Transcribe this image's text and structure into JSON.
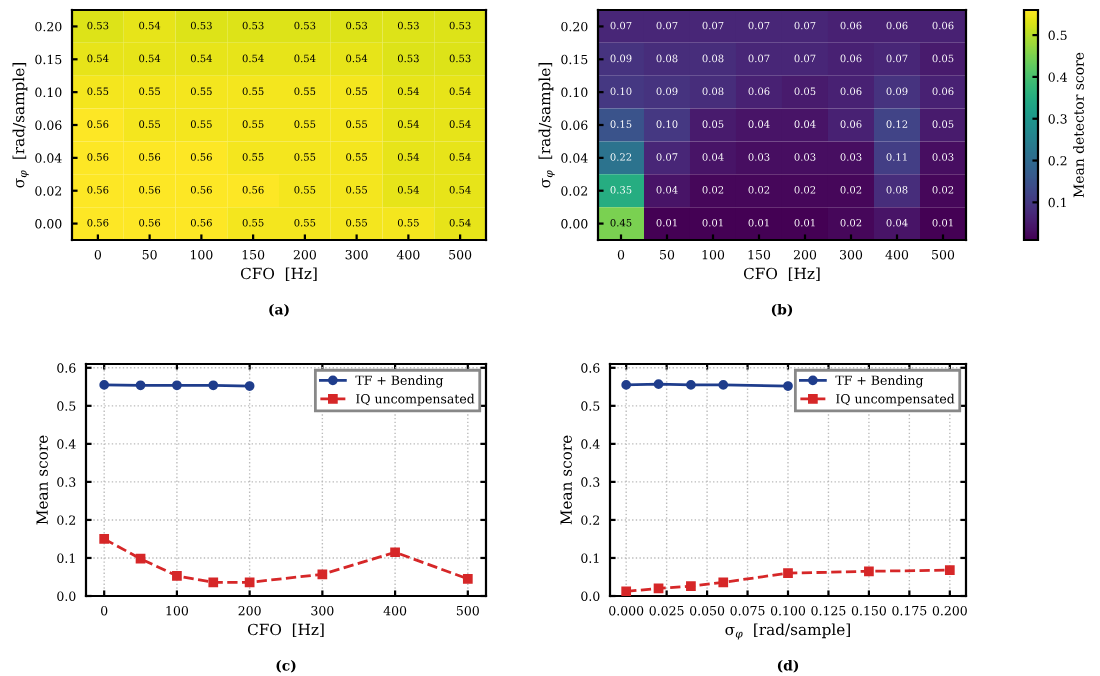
{
  "chart_data": [
    {
      "type": "heatmap",
      "categories": [
        "0",
        "50",
        "100",
        "150",
        "200",
        "300",
        "400",
        "500"
      ],
      "y_categories": [
        "0.20",
        "0.15",
        "0.10",
        "0.06",
        "0.04",
        "0.02",
        "0.00"
      ],
      "xlabel": "CFO  [Hz]",
      "ylabel": "σ$_{φ}$  [rad/sample]",
      "data_labels": true,
      "annotations": [
        "(a)"
      ],
      "cells": [
        [
          0.53,
          0.54,
          0.53,
          0.53,
          0.53,
          0.53,
          0.53,
          0.53
        ],
        [
          0.54,
          0.54,
          0.54,
          0.54,
          0.54,
          0.54,
          0.53,
          0.53
        ],
        [
          0.55,
          0.55,
          0.55,
          0.55,
          0.55,
          0.55,
          0.54,
          0.54
        ],
        [
          0.56,
          0.55,
          0.55,
          0.55,
          0.55,
          0.55,
          0.54,
          0.54
        ],
        [
          0.56,
          0.56,
          0.56,
          0.55,
          0.55,
          0.55,
          0.54,
          0.54
        ],
        [
          0.56,
          0.56,
          0.56,
          0.56,
          0.55,
          0.55,
          0.54,
          0.54
        ],
        [
          0.56,
          0.56,
          0.56,
          0.55,
          0.55,
          0.55,
          0.55,
          0.54
        ]
      ]
    },
    {
      "type": "heatmap",
      "categories": [
        "0",
        "50",
        "100",
        "150",
        "200",
        "300",
        "400",
        "500"
      ],
      "y_categories": [
        "0.20",
        "0.15",
        "0.10",
        "0.06",
        "0.04",
        "0.02",
        "0.00"
      ],
      "xlabel": "CFO  [Hz]",
      "ylabel": "σ$_{φ}$  [rad/sample]",
      "clim": [
        0.01,
        0.56
      ],
      "cticks": [
        0.1,
        0.2,
        0.3,
        0.4,
        0.5
      ],
      "clabel": "Mean detector score",
      "annotations": [
        "(b)"
      ],
      "cell_labels": [
        [
          "0.07",
          "0.07",
          "0.07",
          "0.07",
          "0.07",
          "0.06",
          "0.06",
          "0.06"
        ],
        [
          "0.09",
          "0.08",
          "0.08",
          "0.07",
          "0.07",
          "0.06",
          "0.07",
          "0.05"
        ],
        [
          "0.10",
          "0.09",
          "0.08",
          "0.06",
          "0.05",
          "0.06",
          "0.09",
          "0.06"
        ],
        [
          "0.15",
          "0.10",
          "0.05",
          "0.04",
          "0.04",
          "0.06",
          "0.12",
          "0.05"
        ],
        [
          "0.22",
          "0.07",
          "0.04",
          "0.03",
          "0.03",
          "0.03",
          "0.11",
          "0.03"
        ],
        [
          "0.35",
          "0.04",
          "0.02",
          "0.02",
          "0.02",
          "0.02",
          "0.08",
          "0.02"
        ],
        [
          "0.45",
          "0.01",
          "0.01",
          "0.01",
          "0.01",
          "0.02",
          "0.04",
          "0.01"
        ]
      ],
      "cells": [
        [
          0.07,
          0.07,
          0.07,
          0.07,
          0.07,
          0.06,
          0.06,
          0.06
        ],
        [
          0.09,
          0.08,
          0.08,
          0.07,
          0.07,
          0.06,
          0.07,
          0.05
        ],
        [
          0.1,
          0.09,
          0.08,
          0.06,
          0.05,
          0.06,
          0.09,
          0.06
        ],
        [
          0.15,
          0.1,
          0.05,
          0.04,
          0.04,
          0.06,
          0.12,
          0.05
        ],
        [
          0.22,
          0.07,
          0.04,
          0.03,
          0.03,
          0.03,
          0.11,
          0.03
        ],
        [
          0.35,
          0.04,
          0.02,
          0.02,
          0.02,
          0.02,
          0.08,
          0.02
        ],
        [
          0.45,
          0.01,
          0.01,
          0.01,
          0.01,
          0.02,
          0.04,
          0.01
        ]
      ]
    },
    {
      "type": "line",
      "x": [
        0,
        50,
        100,
        150,
        200,
        300,
        400,
        500
      ],
      "xlabel": "CFO  [Hz]",
      "ylabel": "Mean score",
      "xlim": [
        -25,
        525
      ],
      "xticks": [
        0,
        100,
        200,
        300,
        400,
        500
      ],
      "ylim": [
        0,
        0.61
      ],
      "yticks": [
        {
          "value": 0,
          "label": "0.0"
        },
        0.1,
        0.2,
        0.3,
        0.4,
        0.5,
        0.6
      ],
      "grid": true,
      "legend": "top right",
      "annotations": [
        "(c)"
      ],
      "series": [
        {
          "name": "TF + Bending",
          "color": "#1f3d8c",
          "marker": "circle",
          "line_style": "solid",
          "values": [
            0.555,
            0.554,
            0.554,
            0.554,
            0.552,
            null,
            null,
            null
          ]
        },
        {
          "name": "IQ uncompensated",
          "color": "#d62728",
          "marker": "square",
          "line_style": "dashed",
          "values": [
            0.15,
            0.098,
            0.053,
            0.036,
            0.036,
            0.057,
            0.115,
            0.045
          ]
        }
      ]
    },
    {
      "type": "line",
      "x": [
        0,
        0.02,
        0.04,
        0.06,
        0.1,
        0.15,
        0.2
      ],
      "xlabel": "σ$_{φ}$  [rad/sample]",
      "ylabel": "Mean score",
      "xlim": [
        -0.01,
        0.21
      ],
      "xticks": [
        {
          "value": 0,
          "label": "0.000"
        },
        {
          "value": 0.025,
          "label": "0.025"
        },
        {
          "value": 0.05,
          "label": "0.050"
        },
        {
          "value": 0.075,
          "label": "0.075"
        },
        {
          "value": 0.1,
          "label": "0.100"
        },
        {
          "value": 0.125,
          "label": "0.125"
        },
        {
          "value": 0.15,
          "label": "0.150"
        },
        {
          "value": 0.175,
          "label": "0.175"
        },
        {
          "value": 0.2,
          "label": "0.200"
        }
      ],
      "ylim": [
        0,
        0.61
      ],
      "yticks": [
        {
          "value": 0,
          "label": "0.0"
        },
        0.1,
        0.2,
        0.3,
        0.4,
        0.5,
        0.6
      ],
      "grid": true,
      "legend": "top right",
      "annotations": [
        "(d)"
      ],
      "series": [
        {
          "name": "TF + Bending",
          "color": "#1f3d8c",
          "marker": "circle",
          "line_style": "solid",
          "values": [
            0.555,
            0.557,
            0.555,
            0.555,
            0.552,
            null,
            null
          ]
        },
        {
          "name": "IQ uncompensated",
          "color": "#d62728",
          "marker": "square",
          "line_style": "dashed",
          "values": [
            0.012,
            0.02,
            0.026,
            0.036,
            0.06,
            0.065,
            0.068
          ]
        }
      ]
    }
  ]
}
